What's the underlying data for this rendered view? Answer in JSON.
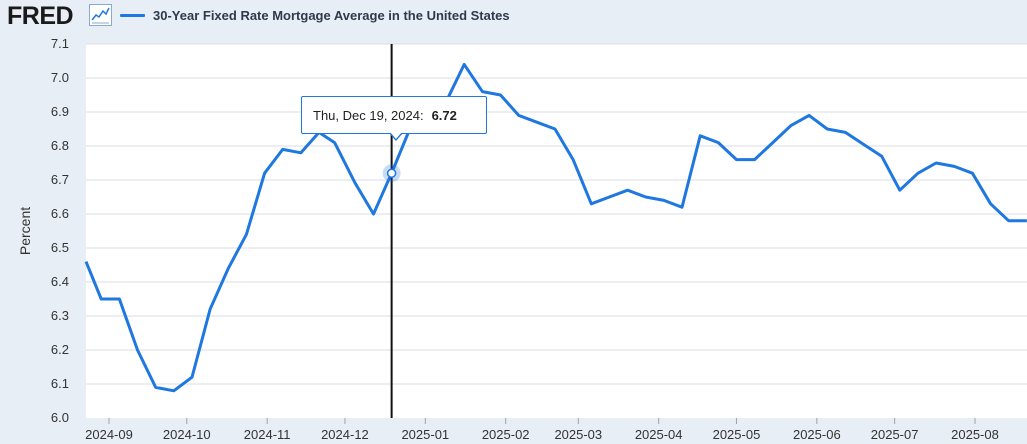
{
  "header": {
    "logo": "FRED",
    "graph_icon": "line-chart-icon"
  },
  "legend": {
    "label": "30-Year Fixed Rate Mortgage Average in the United States",
    "color": "#1f77e0"
  },
  "tooltip": {
    "date": "Thu, Dec 19, 2024:",
    "value": "6.72"
  },
  "chart_data": {
    "type": "line",
    "ylabel": "Percent",
    "ylim": [
      6.0,
      7.1
    ],
    "yticks": [
      "6.0",
      "6.1",
      "6.2",
      "6.3",
      "6.4",
      "6.5",
      "6.6",
      "6.7",
      "6.8",
      "6.9",
      "7.0",
      "7.1"
    ],
    "xticks": [
      "2024-09",
      "2024-10",
      "2024-11",
      "2024-12",
      "2025-01",
      "2025-02",
      "2025-03",
      "2025-04",
      "2025-05",
      "2025-06",
      "2025-07",
      "2025-08"
    ],
    "grid": true,
    "series": [
      {
        "name": "30-Year Fixed Rate Mortgage Average in the United States",
        "color": "#1f77e0",
        "x": [
          "2024-08-22",
          "2024-08-29",
          "2024-09-05",
          "2024-09-12",
          "2024-09-19",
          "2024-09-26",
          "2024-10-03",
          "2024-10-10",
          "2024-10-17",
          "2024-10-24",
          "2024-10-31",
          "2024-11-07",
          "2024-11-14",
          "2024-11-21",
          "2024-11-27",
          "2024-12-05",
          "2024-12-12",
          "2024-12-19",
          "2024-12-26",
          "2025-01-02",
          "2025-01-09",
          "2025-01-16",
          "2025-01-23",
          "2025-01-30",
          "2025-02-06",
          "2025-02-13",
          "2025-02-20",
          "2025-02-27",
          "2025-03-06",
          "2025-03-13",
          "2025-03-20",
          "2025-03-27",
          "2025-04-03",
          "2025-04-10",
          "2025-04-17",
          "2025-04-24",
          "2025-05-01",
          "2025-05-08",
          "2025-05-15",
          "2025-05-22",
          "2025-05-29",
          "2025-06-05",
          "2025-06-12",
          "2025-06-18",
          "2025-06-26",
          "2025-07-03",
          "2025-07-10",
          "2025-07-17",
          "2025-07-24",
          "2025-07-31",
          "2025-08-07",
          "2025-08-14",
          "2025-08-21"
        ],
        "values": [
          6.46,
          6.35,
          6.35,
          6.2,
          6.09,
          6.08,
          6.12,
          6.32,
          6.44,
          6.54,
          6.72,
          6.79,
          6.78,
          6.84,
          6.81,
          6.69,
          6.6,
          6.72,
          6.85,
          6.91,
          6.93,
          7.04,
          6.96,
          6.95,
          6.89,
          6.87,
          6.85,
          6.76,
          6.63,
          6.65,
          6.67,
          6.65,
          6.64,
          6.62,
          6.83,
          6.81,
          6.76,
          6.76,
          6.81,
          6.86,
          6.89,
          6.85,
          6.84,
          6.81,
          6.77,
          6.67,
          6.72,
          6.75,
          6.74,
          6.72,
          6.63,
          6.58,
          6.58
        ]
      }
    ],
    "highlight": {
      "date": "2024-12-19",
      "value": 6.72
    }
  }
}
